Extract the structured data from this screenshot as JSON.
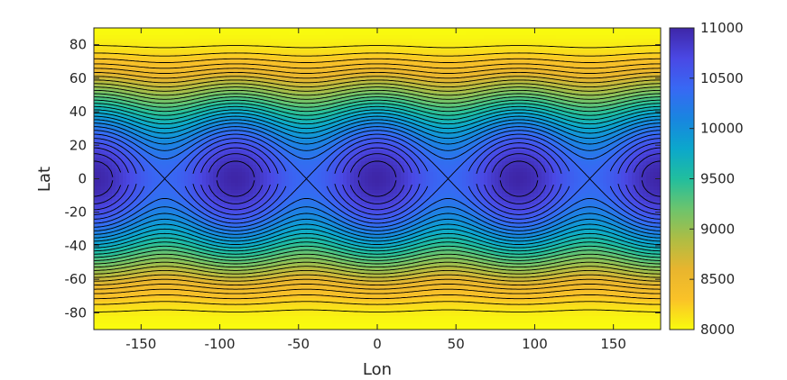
{
  "chart_data": {
    "type": "contour",
    "title": "",
    "xlabel": "Lon",
    "ylabel": "Lat",
    "xlim": [
      -180,
      180
    ],
    "ylim": [
      -90,
      90
    ],
    "xticks": [
      -150,
      -100,
      -50,
      0,
      50,
      100,
      150
    ],
    "yticks": [
      -80,
      -60,
      -40,
      -20,
      0,
      20,
      40,
      60,
      80
    ],
    "grid": false,
    "colormap": "parula",
    "colorbar": {
      "position": "right",
      "range": [
        8000,
        11000
      ],
      "ticks": [
        8000,
        8500,
        9000,
        9500,
        10000,
        10500,
        11000
      ]
    },
    "field": {
      "description_formula": "z = 8000 + 3000*cos(lat)^2 * (0.9 + 0.1*cos(4*(lon-90)))",
      "maxima_lon": [
        -180,
        -90,
        0,
        90,
        180
      ],
      "maxima_lat": 0,
      "max_value": 11000,
      "min_value": 8000
    },
    "contour_levels": [
      8100,
      8200,
      8300,
      8400,
      8500,
      8600,
      8700,
      8800,
      8900,
      9000,
      9100,
      9200,
      9300,
      9400,
      9500,
      9600,
      9700,
      9800,
      9900,
      10000,
      10100,
      10200,
      10300,
      10400,
      10500,
      10600,
      10700,
      10800,
      10900
    ],
    "colors": {
      "axis": "#262626",
      "contour_line": "#000000"
    }
  }
}
